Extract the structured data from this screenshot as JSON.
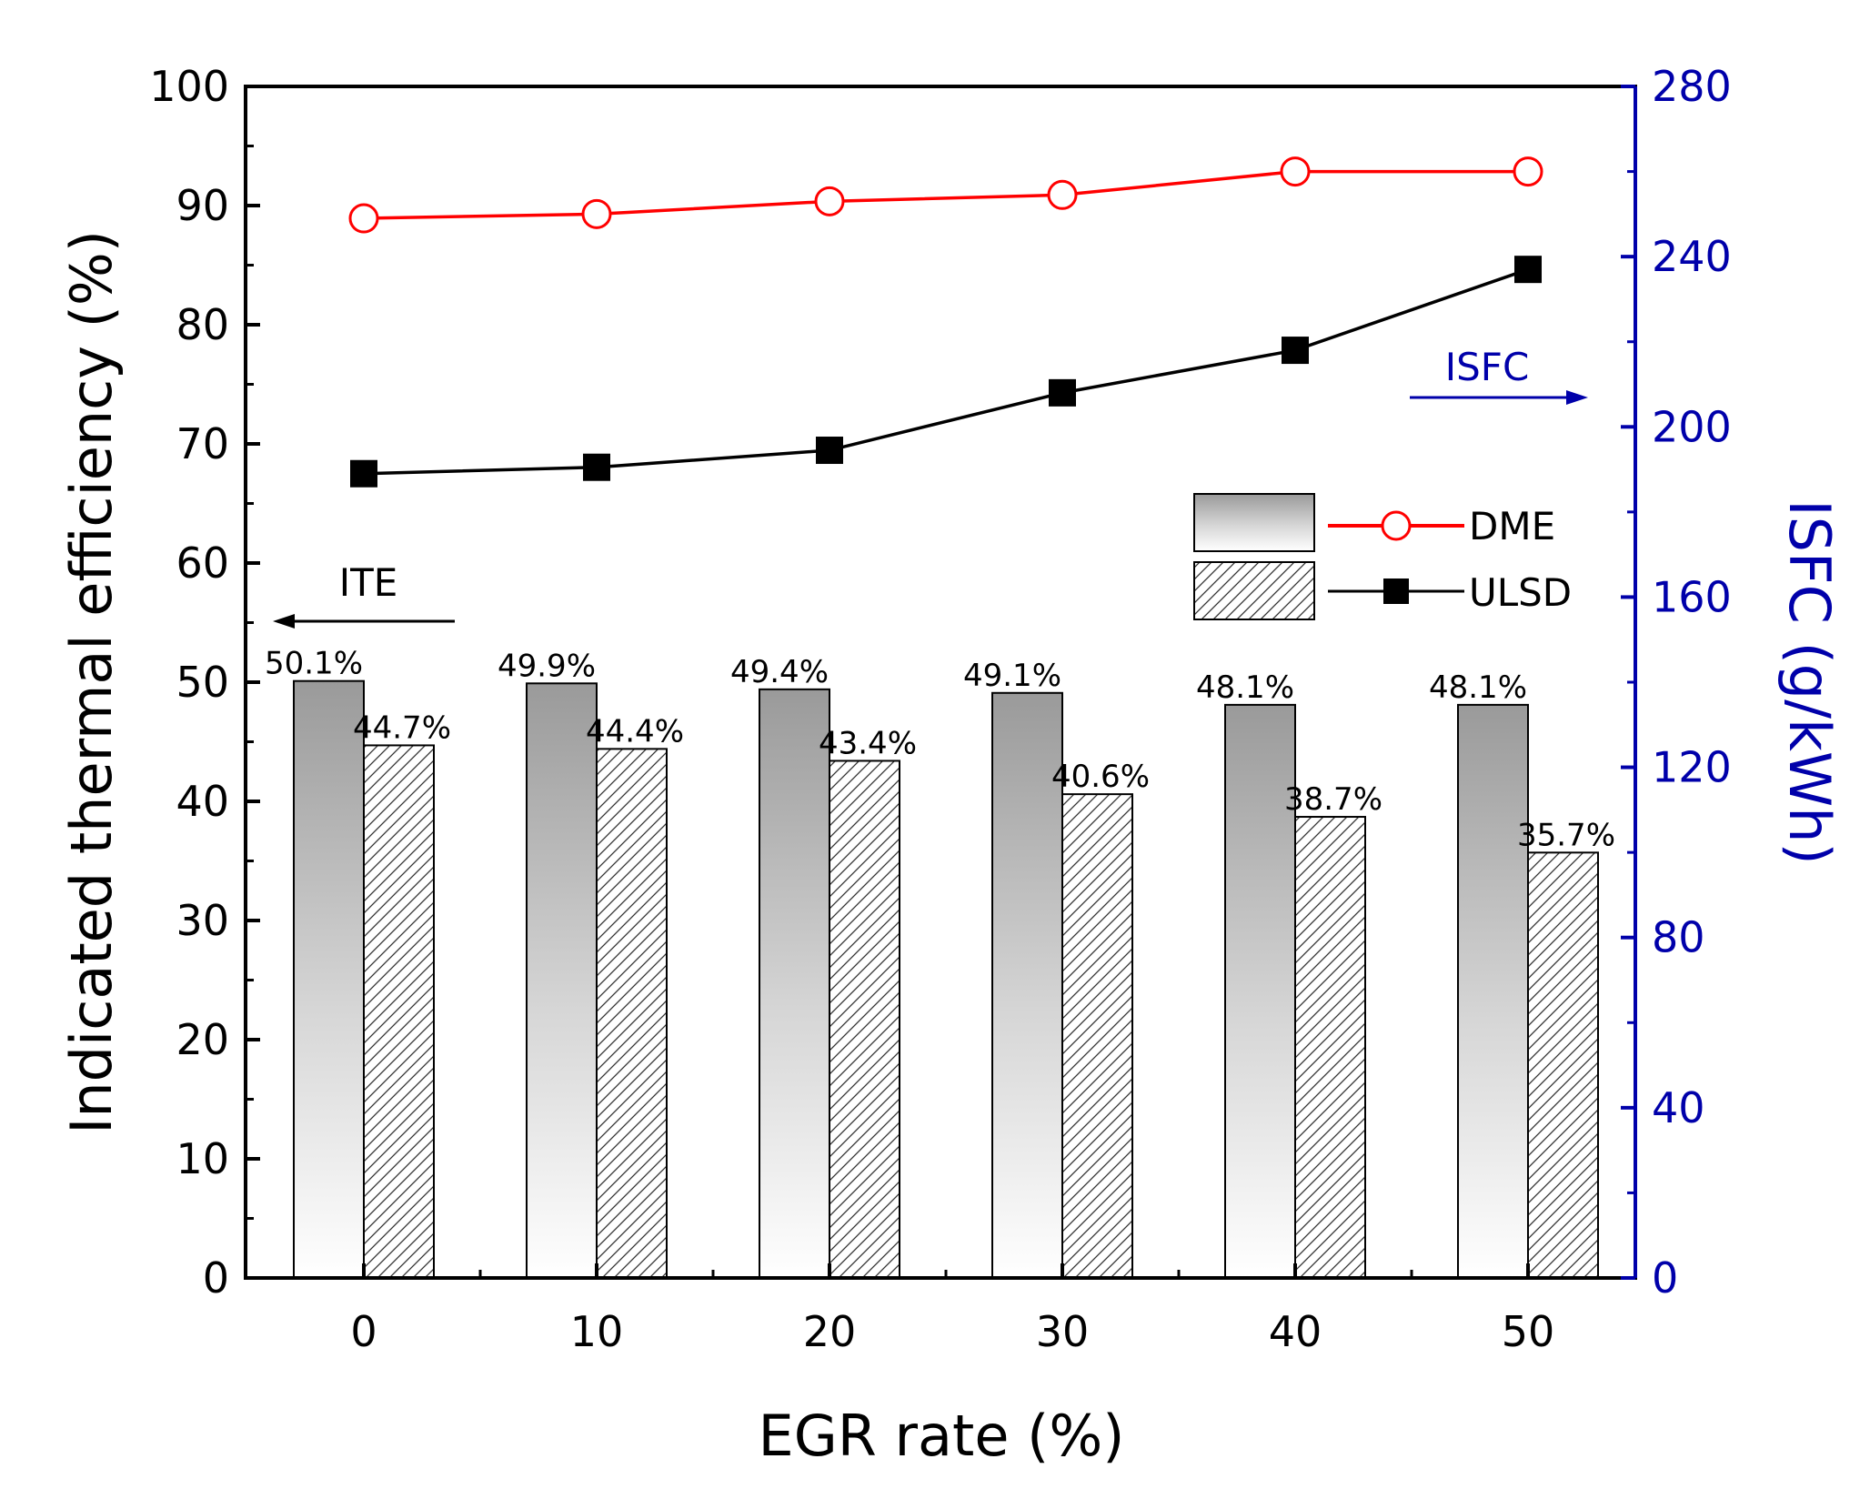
{
  "chart_data": {
    "type": "bar",
    "title": "",
    "xlabel": "EGR rate (%)",
    "ylabel_left": "Indicated thermal efficiency (%)",
    "ylabel_right": "ISFC (g/kWh)",
    "categories": [
      "0",
      "10",
      "20",
      "30",
      "40",
      "50"
    ],
    "x_values": [
      0,
      10,
      20,
      30,
      40,
      50
    ],
    "left_ylim": [
      0,
      100
    ],
    "left_ticks": [
      0,
      10,
      20,
      30,
      40,
      50,
      60,
      70,
      80,
      90,
      100
    ],
    "right_ylim": [
      0,
      280
    ],
    "right_ticks": [
      0,
      40,
      80,
      120,
      160,
      200,
      240,
      280
    ],
    "bar_series": [
      {
        "name": "DME",
        "axis": "left",
        "fill": "gradient-gray",
        "values": [
          50.1,
          49.9,
          49.4,
          49.1,
          48.1,
          48.1
        ],
        "labels": [
          "50.1%",
          "49.9%",
          "49.4%",
          "49.1%",
          "48.1%",
          "48.1%"
        ]
      },
      {
        "name": "ULSD",
        "axis": "left",
        "fill": "hatch",
        "values": [
          44.7,
          44.4,
          43.4,
          40.6,
          38.7,
          35.7
        ],
        "labels": [
          "44.7%",
          "44.4%",
          "43.4%",
          "40.6%",
          "38.7%",
          "35.7%"
        ]
      }
    ],
    "line_series": [
      {
        "name": "DME",
        "axis": "right",
        "color": "#ff0000",
        "marker": "open-circle",
        "values": [
          249,
          250,
          253,
          254.5,
          260,
          260
        ]
      },
      {
        "name": "ULSD",
        "axis": "right",
        "color": "#000000",
        "marker": "filled-square",
        "values": [
          189,
          190.5,
          194.5,
          208,
          218,
          237
        ]
      }
    ],
    "legend": {
      "position": "right-middle",
      "entries": [
        "DME",
        "ULSD"
      ]
    },
    "annotations": {
      "ite": "ITE",
      "isfc": "ISFC"
    },
    "colors": {
      "left_axis": "#000000",
      "right_axis": "#0000aa",
      "dme_line": "#ff0000",
      "ulsd_line": "#000000"
    }
  }
}
